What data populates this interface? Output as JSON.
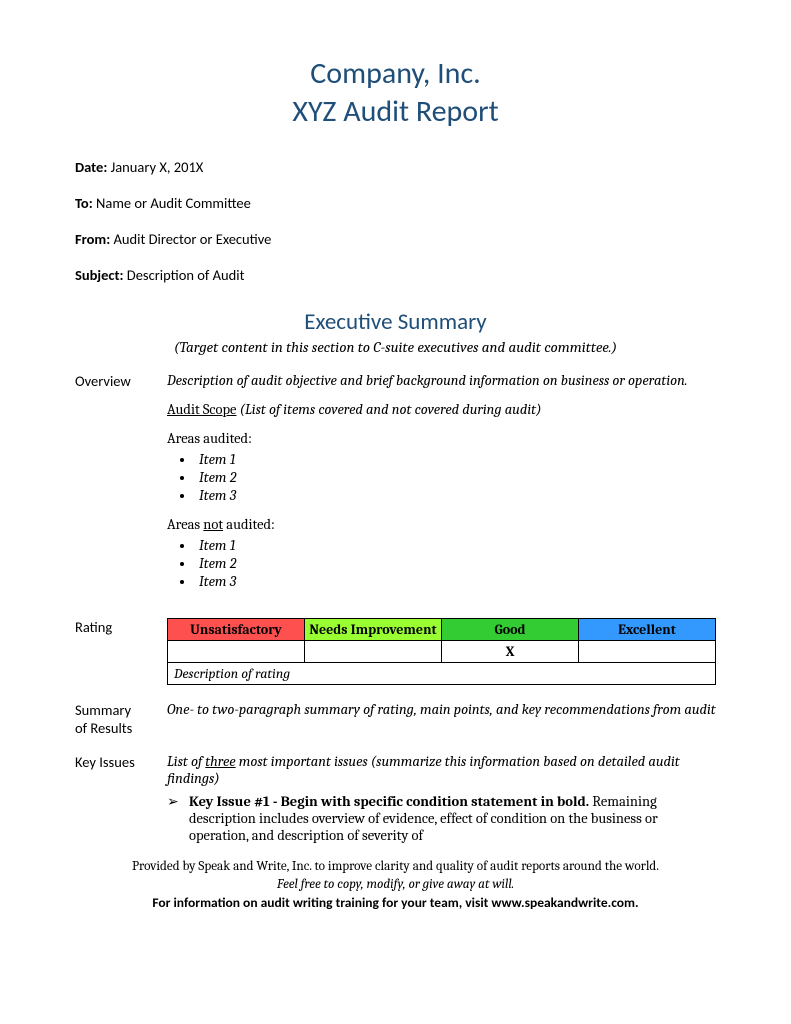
{
  "title": {
    "line1": "Company, Inc.",
    "line2": "XYZ Audit Report"
  },
  "meta": {
    "date_label": "Date:",
    "date_value": "  January X, 201X",
    "to_label": "To:",
    "to_value": "  Name or Audit Committee",
    "from_label": "From:",
    "from_value": " Audit Director or Executive",
    "subject_label": "Subject:",
    "subject_value": "  Description of Audit"
  },
  "exec_summary": {
    "heading": "Executive Summary",
    "subtitle": "(Target content in this section to C-suite executives and audit committee.)"
  },
  "overview": {
    "label": "Overview",
    "desc": "Description of audit objective and brief background information on business or operation.",
    "scope_label": "Audit Scope",
    "scope_paren": " (List of items covered and not covered during audit)",
    "areas_audited": "Areas audited:",
    "areas_not_pre": "Areas ",
    "areas_not_u": "not",
    "areas_not_post": " audited:",
    "items": [
      "Item 1",
      "Item 2",
      "Item 3"
    ],
    "items2": [
      "Item 1",
      "Item 2",
      "Item 3"
    ]
  },
  "rating": {
    "label": "Rating",
    "headers": [
      "Unsatisfactory",
      "Needs Improvement",
      "Good",
      "Excellent"
    ],
    "header_colors": [
      "#ff5050",
      "#99ff33",
      "#33cc33",
      "#3399ff"
    ],
    "border_color": "#000000",
    "marks": [
      "",
      "",
      "X",
      ""
    ],
    "desc": "Description of rating"
  },
  "summary": {
    "label1": "Summary",
    "label2": "of Results",
    "text": "One- to two-paragraph summary of rating, main points, and key recommendations from audit"
  },
  "keyissues": {
    "label": "Key Issues",
    "intro_pre": "List of ",
    "intro_u": "three",
    "intro_post": " most important issues (summarize this information based on detailed audit findings)",
    "issue_title": "Key Issue #1  - Begin with specific condition statement in bold.",
    "issue_body": "Remaining description includes overview of evidence, effect of condition on the business or operation, and description of severity of"
  },
  "footer": {
    "line1": "Provided by Speak and Write, Inc. to improve clarity and quality of audit reports around the world.",
    "line2": "Feel free to copy, modify, or give away at will.",
    "line3": "For information on audit writing training for your team, visit www.speakandwrite.com."
  }
}
